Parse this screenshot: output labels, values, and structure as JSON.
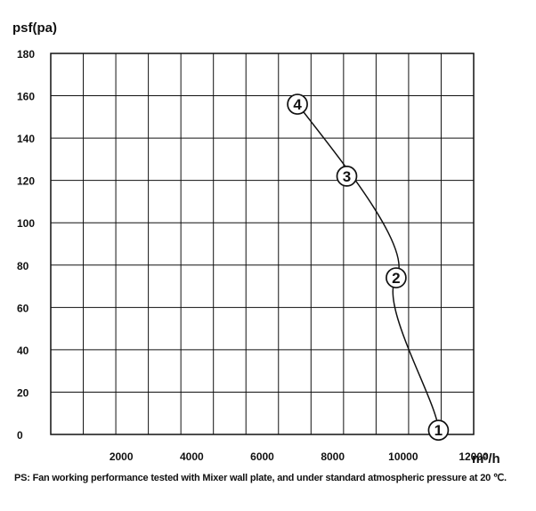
{
  "chart_data": {
    "type": "line",
    "ylabel": "psf(pa)",
    "xlabel": "m³/h",
    "xlim": [
      0,
      12000
    ],
    "ylim": [
      0,
      180
    ],
    "x_tick_labels": [
      "2000",
      "4000",
      "6000",
      "8000",
      "10000",
      "12000"
    ],
    "y_tick_labels": [
      "0",
      "20",
      "40",
      "60",
      "80",
      "100",
      "120",
      "140",
      "160",
      "180"
    ],
    "series": [
      {
        "x": [
          7000,
          8400,
          9800,
          11000
        ],
        "y": [
          156,
          122,
          74,
          2
        ],
        "point_labels": [
          "4",
          "3",
          "2",
          "1"
        ]
      }
    ],
    "grid": true,
    "footnote": "PS: Fan working performance tested with Mixer wall plate, and under standard atmospheric pressure at 20 ℃."
  }
}
